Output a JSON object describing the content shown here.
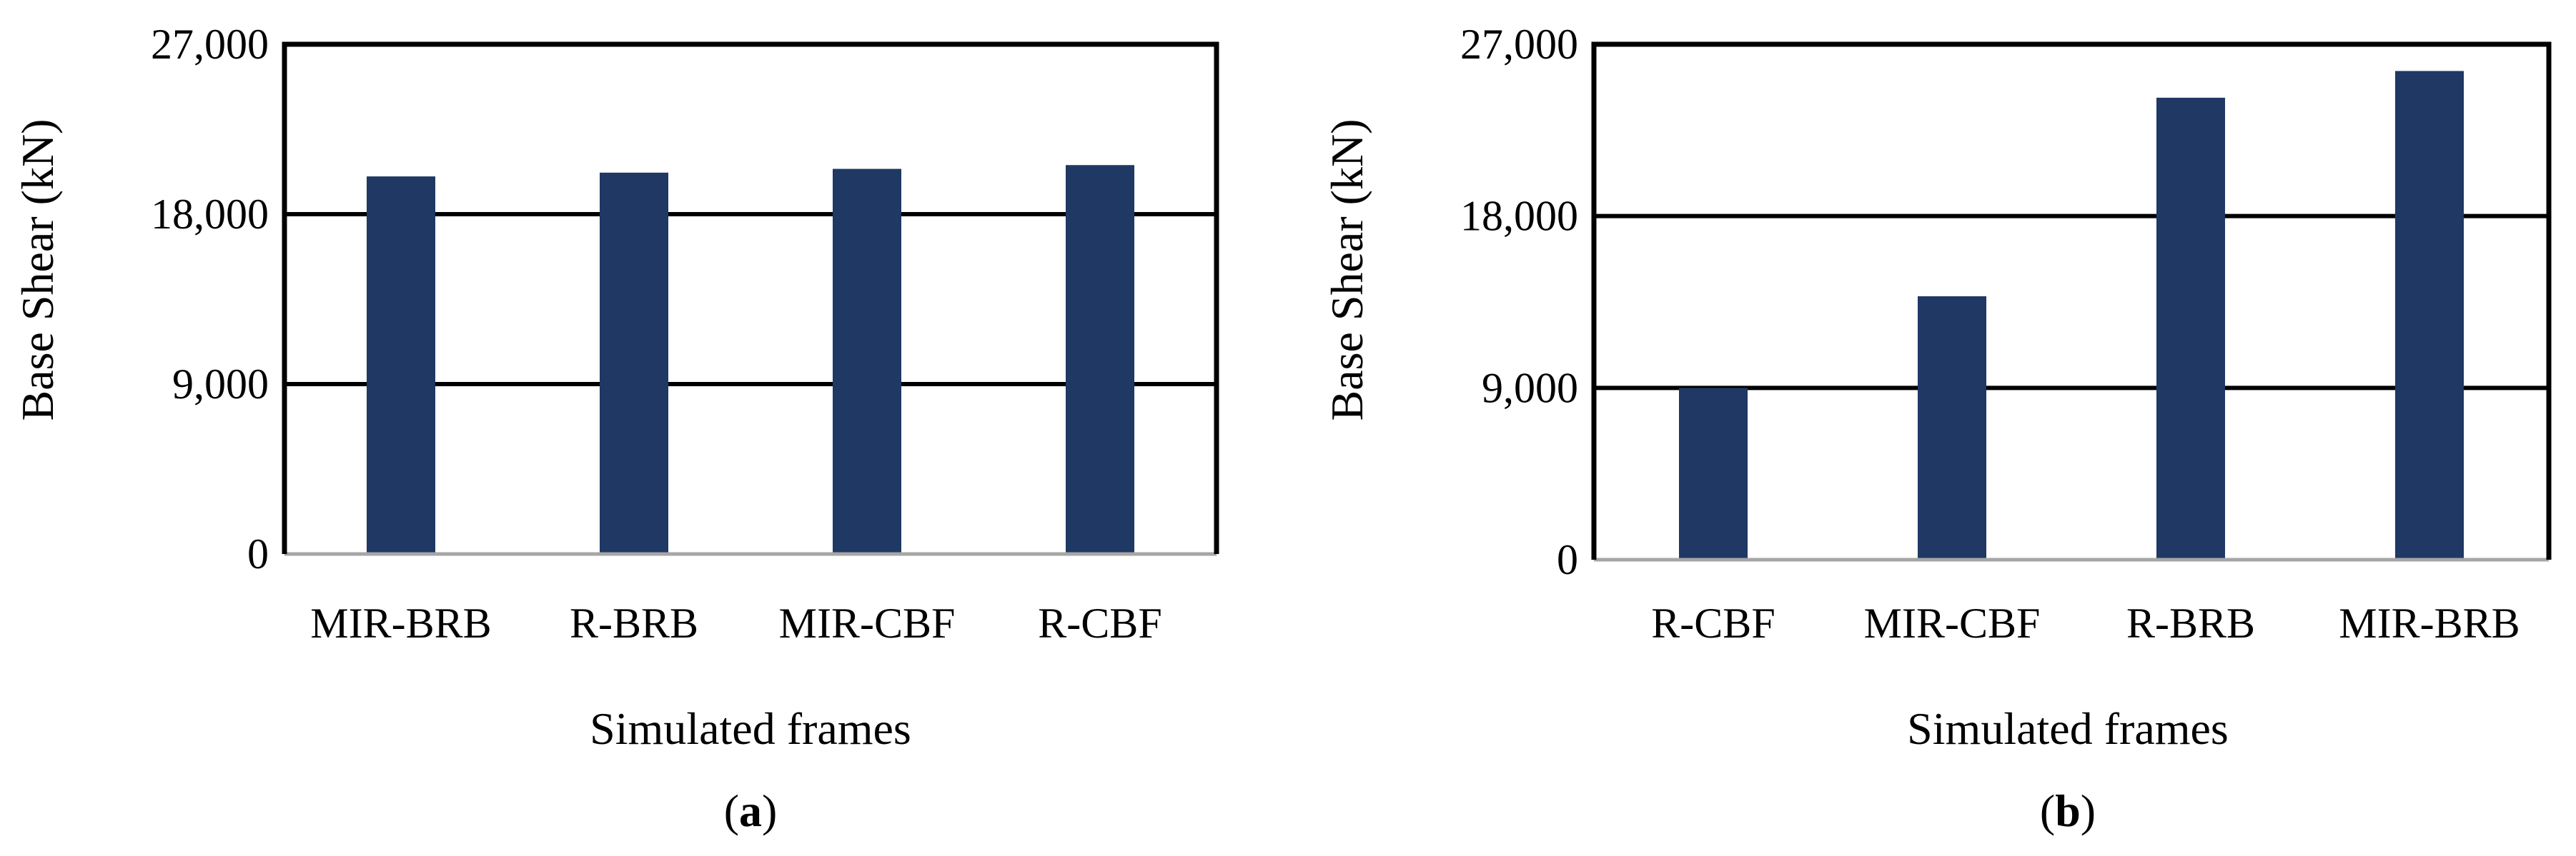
{
  "colors": {
    "bar": "#1F3864",
    "gridline": "#000000",
    "baseline": "#A6A6A6",
    "background": "#FFFFFF"
  },
  "chart_data": [
    {
      "type": "bar",
      "panel_label": "a",
      "categories": [
        "MIR-BRB",
        "R-BRB",
        "MIR-CBF",
        "R-CBF"
      ],
      "values": [
        20000,
        20200,
        20400,
        20600
      ],
      "xlabel": "Simulated frames",
      "ylabel": "Base Shear (kN)",
      "ylim": [
        0,
        27000
      ],
      "yticks": [
        0,
        9000,
        18000,
        27000
      ],
      "ytick_labels": [
        "0",
        "9,000",
        "18,000",
        "27,000"
      ],
      "grid": true,
      "legend": "none"
    },
    {
      "type": "bar",
      "panel_label": "b",
      "categories": [
        "R-CBF",
        "MIR-CBF",
        "R-BRB",
        "MIR-BRB"
      ],
      "values": [
        9000,
        13800,
        24200,
        25600
      ],
      "xlabel": "Simulated frames",
      "ylabel": "Base Shear (kN)",
      "ylim": [
        0,
        27000
      ],
      "yticks": [
        0,
        9000,
        18000,
        27000
      ],
      "ytick_labels": [
        "0",
        "9,000",
        "18,000",
        "27,000"
      ],
      "grid": true,
      "legend": "none"
    }
  ]
}
